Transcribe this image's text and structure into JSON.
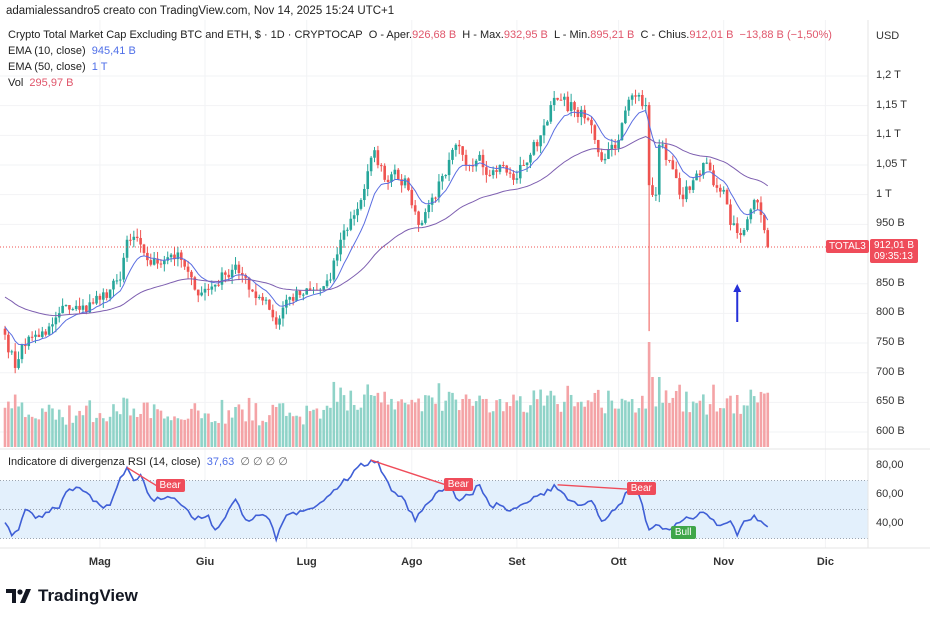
{
  "credit": "adamialessandro5 creato con TradingView.com, Nov 14, 2025 15:24 UTC+1",
  "header": {
    "symbol_title": "Crypto Total Market Cap Excluding BTC and ETH, $ · 1D · CRYPTOCAP",
    "open_label": "O - Aper.",
    "open": "926,68 B",
    "high_label": "H - Max.",
    "high": "932,95 B",
    "low_label": "L - Min.",
    "low": "895,21 B",
    "close_label": "C - Chius.",
    "close": "912,01 B",
    "change": "−13,88 B (−1,50%)"
  },
  "indicators": {
    "ema10_label": "EMA (10, close)",
    "ema10_value": "945,41 B",
    "ema50_label": "EMA (50, close)",
    "ema50_value": "1 T",
    "vol_label": "Vol",
    "vol_value": "295,97 B",
    "rsi_label": "Indicatore di divergenza RSI (14, close)",
    "rsi_value": "37,63",
    "rsi_extra": "∅ ∅ ∅ ∅"
  },
  "price_axis": {
    "currency": "USD",
    "ticks": [
      "1,2 T",
      "1,15 T",
      "1,1 T",
      "1,05 T",
      "1 T",
      "950 B",
      "850 B",
      "800 B",
      "750 B",
      "700 B",
      "650 B",
      "600 B"
    ],
    "tick_values": [
      1200,
      1150,
      1100,
      1050,
      1000,
      950,
      850,
      800,
      750,
      700,
      650,
      600
    ]
  },
  "last_price": {
    "symbol": "TOTAL3",
    "price": "912,01 B",
    "countdown": "09:35:13"
  },
  "rsi_axis": {
    "ticks": [
      "80,00",
      "60,00",
      "40,00"
    ],
    "tick_values": [
      80,
      60,
      40
    ]
  },
  "time_axis": {
    "labels": [
      "Mag",
      "Giu",
      "Lug",
      "Ago",
      "Set",
      "Ott",
      "Nov",
      "Dic"
    ],
    "days": [
      28,
      59,
      89,
      120,
      151,
      181,
      212,
      242
    ]
  },
  "signals": [
    {
      "label": "Bear",
      "type": "bear",
      "from": [
        36,
        79
      ],
      "to": [
        45,
        66
      ]
    },
    {
      "label": "Bear",
      "type": "bear",
      "from": [
        108,
        84
      ],
      "to": [
        130,
        67
      ]
    },
    {
      "label": "Bear",
      "type": "bear",
      "from": [
        163,
        67
      ],
      "to": [
        184,
        64
      ]
    },
    {
      "label": "Bull",
      "type": "bull",
      "at": [
        197,
        34
      ]
    }
  ],
  "logo": "TradingView",
  "colors": {
    "up": "#26a69a",
    "down": "#ef5350",
    "ema10": "#5b6ee1",
    "ema50": "#7e5fb0",
    "rsi": "#3f5fd6",
    "rsi_band": "#e3f0fc",
    "arrow": "#2530d8"
  },
  "chart_data": {
    "type": "candlestick",
    "title": "Crypto Total Market Cap Excluding BTC and ETH (TOTAL3), 1D",
    "x_unit": "days since Apr 3, 2025",
    "y_unit": "billion USD",
    "ylim": [
      580,
      1210
    ],
    "close_keypoints": [
      [
        0,
        764
      ],
      [
        3,
        708
      ],
      [
        5,
        747
      ],
      [
        9,
        764
      ],
      [
        12,
        764
      ],
      [
        18,
        814
      ],
      [
        22,
        806
      ],
      [
        28,
        823
      ],
      [
        34,
        857
      ],
      [
        36,
        924
      ],
      [
        40,
        916
      ],
      [
        43,
        882
      ],
      [
        49,
        899
      ],
      [
        52,
        890
      ],
      [
        56,
        840
      ],
      [
        60,
        840
      ],
      [
        65,
        865
      ],
      [
        68,
        882
      ],
      [
        72,
        840
      ],
      [
        77,
        823
      ],
      [
        80,
        781
      ],
      [
        83,
        823
      ],
      [
        87,
        831
      ],
      [
        93,
        840
      ],
      [
        96,
        857
      ],
      [
        99,
        924
      ],
      [
        105,
        991
      ],
      [
        109,
        1075
      ],
      [
        112,
        1025
      ],
      [
        115,
        1042
      ],
      [
        119,
        1008
      ],
      [
        122,
        949
      ],
      [
        125,
        983
      ],
      [
        130,
        1033
      ],
      [
        133,
        1084
      ],
      [
        136,
        1050
      ],
      [
        140,
        1067
      ],
      [
        143,
        1033
      ],
      [
        146,
        1050
      ],
      [
        150,
        1025
      ],
      [
        153,
        1050
      ],
      [
        158,
        1100
      ],
      [
        161,
        1151
      ],
      [
        164,
        1160
      ],
      [
        168,
        1143
      ],
      [
        173,
        1117
      ],
      [
        176,
        1058
      ],
      [
        179,
        1084
      ],
      [
        181,
        1092
      ],
      [
        184,
        1160
      ],
      [
        187,
        1168
      ],
      [
        189,
        1151
      ],
      [
        190,
        1016
      ],
      [
        192,
        1000
      ],
      [
        193,
        1084
      ],
      [
        196,
        1058
      ],
      [
        199,
        1000
      ],
      [
        202,
        1008
      ],
      [
        205,
        1033
      ],
      [
        207,
        1054
      ],
      [
        209,
        1016
      ],
      [
        212,
        1008
      ],
      [
        214,
        949
      ],
      [
        217,
        932
      ],
      [
        220,
        975
      ],
      [
        221,
        991
      ],
      [
        223,
        966
      ],
      [
        225,
        912
      ]
    ],
    "notable_wick": {
      "day": 190,
      "low": 770
    },
    "rsi_keypoints": [
      [
        0,
        41
      ],
      [
        2,
        32
      ],
      [
        4,
        36
      ],
      [
        6,
        50
      ],
      [
        9,
        44
      ],
      [
        12,
        48
      ],
      [
        16,
        51
      ],
      [
        18,
        62
      ],
      [
        22,
        65
      ],
      [
        25,
        60
      ],
      [
        28,
        53
      ],
      [
        31,
        53
      ],
      [
        34,
        72
      ],
      [
        36,
        79
      ],
      [
        38,
        70
      ],
      [
        40,
        74
      ],
      [
        43,
        58
      ],
      [
        46,
        57
      ],
      [
        49,
        58
      ],
      [
        52,
        53
      ],
      [
        56,
        43
      ],
      [
        60,
        46
      ],
      [
        62,
        36
      ],
      [
        66,
        50
      ],
      [
        68,
        57
      ],
      [
        71,
        43
      ],
      [
        74,
        46
      ],
      [
        78,
        43
      ],
      [
        80,
        29
      ],
      [
        83,
        46
      ],
      [
        87,
        49
      ],
      [
        91,
        51
      ],
      [
        94,
        56
      ],
      [
        99,
        67
      ],
      [
        103,
        77
      ],
      [
        108,
        84
      ],
      [
        110,
        83
      ],
      [
        114,
        63
      ],
      [
        118,
        56
      ],
      [
        121,
        42
      ],
      [
        124,
        53
      ],
      [
        128,
        63
      ],
      [
        131,
        67
      ],
      [
        134,
        56
      ],
      [
        137,
        60
      ],
      [
        140,
        67
      ],
      [
        143,
        53
      ],
      [
        146,
        53
      ],
      [
        149,
        49
      ],
      [
        152,
        53
      ],
      [
        155,
        56
      ],
      [
        159,
        60
      ],
      [
        162,
        67
      ],
      [
        167,
        56
      ],
      [
        170,
        53
      ],
      [
        173,
        56
      ],
      [
        176,
        42
      ],
      [
        179,
        49
      ],
      [
        181,
        53
      ],
      [
        184,
        63
      ],
      [
        187,
        60
      ],
      [
        190,
        36
      ],
      [
        193,
        39
      ],
      [
        196,
        36
      ],
      [
        199,
        41
      ],
      [
        202,
        44
      ],
      [
        205,
        48
      ],
      [
        208,
        44
      ],
      [
        211,
        39
      ],
      [
        214,
        42
      ],
      [
        216,
        32
      ],
      [
        218,
        42
      ],
      [
        221,
        46
      ],
      [
        223,
        42
      ],
      [
        225,
        38
      ]
    ],
    "rsi_band": [
      30,
      70
    ],
    "rsi_ylim": [
      20,
      90
    ],
    "annotation": {
      "type": "arrow-up",
      "day": 216,
      "price": 860
    }
  }
}
